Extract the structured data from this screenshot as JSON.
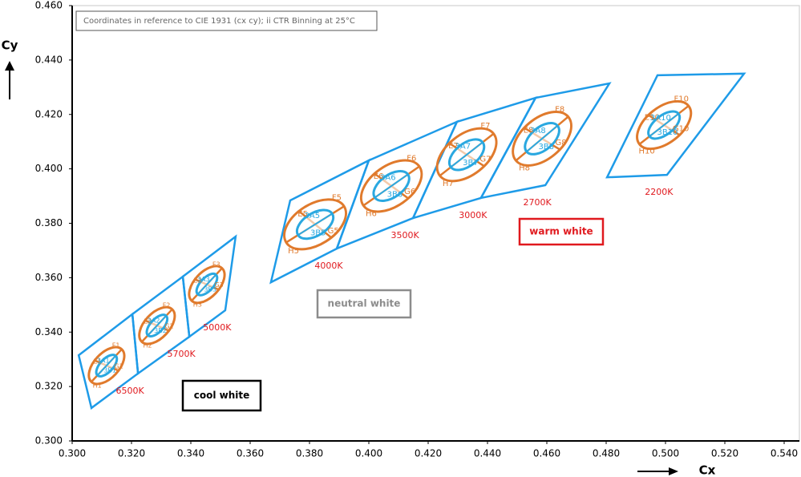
{
  "chart_data": {
    "type": "bin-map",
    "note": "Coordinates in reference to CIE 1931 (cx cy); ii CTR Binning at 25°C",
    "x_label": "Cx",
    "y_label": "Cy",
    "xlim": [
      0.3,
      0.54
    ],
    "ylim": [
      0.3,
      0.46
    ],
    "xticks": [
      {
        "value": 0.3,
        "label": "0.300"
      },
      {
        "value": 0.32,
        "label": "0.320"
      },
      {
        "value": 0.34,
        "label": "0.340"
      },
      {
        "value": 0.36,
        "label": "0.360"
      },
      {
        "value": 0.38,
        "label": "0.380"
      },
      {
        "value": 0.4,
        "label": "0.400"
      },
      {
        "value": 0.42,
        "label": "0.420"
      },
      {
        "value": 0.44,
        "label": "0.440"
      },
      {
        "value": 0.46,
        "label": "0.460"
      },
      {
        "value": 0.48,
        "label": "0.480"
      },
      {
        "value": 0.5,
        "label": "0.500"
      },
      {
        "value": 0.52,
        "label": "0.520"
      },
      {
        "value": 0.54,
        "label": "0.540"
      }
    ],
    "yticks": [
      {
        "value": 0.3,
        "label": "0.300"
      },
      {
        "value": 0.32,
        "label": "0.320"
      },
      {
        "value": 0.34,
        "label": "0.340"
      },
      {
        "value": 0.36,
        "label": "0.360"
      },
      {
        "value": 0.38,
        "label": "0.380"
      },
      {
        "value": 0.4,
        "label": "0.400"
      },
      {
        "value": 0.42,
        "label": "0.420"
      },
      {
        "value": 0.44,
        "label": "0.440"
      },
      {
        "value": 0.46,
        "label": "0.460"
      }
    ],
    "quad_color": "#1e9be8",
    "outer_color": "#e07a2c",
    "inner_color": "#2aa8e0",
    "cct_color": "#e0191e",
    "bins": [
      {
        "name": "6500K",
        "quad": {
          "x": [
            0.3022,
            0.3203,
            0.3222,
            0.3065
          ],
          "y": [
            0.3315,
            0.3466,
            0.3248,
            0.3121
          ]
        },
        "cx": 0.3116,
        "cy": 0.3277,
        "outer": [
          0.0075,
          0.0042
        ],
        "inner": [
          0.0045,
          0.0022
        ],
        "angle": -47,
        "labels": [
          "E1",
          "F1",
          "G1",
          "H1"
        ],
        "inner_labels": [
          "3A1",
          "3B1"
        ]
      },
      {
        "name": "5700K",
        "quad": {
          "x": [
            0.3203,
            0.3373,
            0.3395,
            0.3222
          ],
          "y": [
            0.3466,
            0.3604,
            0.3383,
            0.3248
          ]
        },
        "cx": 0.3286,
        "cy": 0.3424,
        "outer": [
          0.0075,
          0.0042
        ],
        "inner": [
          0.0045,
          0.0022
        ],
        "angle": -47,
        "labels": [
          "E2",
          "F2",
          "G2",
          "H2"
        ],
        "inner_labels": [
          "3A2",
          "3B2"
        ]
      },
      {
        "name": "5000K",
        "quad": {
          "x": [
            0.3373,
            0.3551,
            0.3516,
            0.3395
          ],
          "y": [
            0.3604,
            0.3751,
            0.348,
            0.3383
          ]
        },
        "cx": 0.3454,
        "cy": 0.3575,
        "outer": [
          0.0075,
          0.0042
        ],
        "inner": [
          0.0045,
          0.0022
        ],
        "angle": -47,
        "labels": [
          "E3",
          "F3",
          "G3",
          "H3"
        ],
        "inner_labels": [
          "3A3",
          "3B3"
        ]
      },
      {
        "name": "4000K",
        "quad": {
          "x": [
            0.3735,
            0.4,
            0.3892,
            0.367
          ],
          "y": [
            0.3884,
            0.4031,
            0.3707,
            0.3583
          ]
        },
        "cx": 0.3819,
        "cy": 0.3796,
        "outer": [
          0.0115,
          0.0068
        ],
        "inner": [
          0.0068,
          0.0038
        ],
        "angle": -32,
        "labels": [
          "E5",
          "F5",
          "G5",
          "H5"
        ],
        "inner_labels": [
          "3A5",
          "3B5"
        ]
      },
      {
        "name": "3500K",
        "quad": {
          "x": [
            0.4,
            0.4297,
            0.4149,
            0.3892
          ],
          "y": [
            0.4031,
            0.4173,
            0.3819,
            0.3707
          ]
        },
        "cx": 0.4076,
        "cy": 0.3937,
        "outer": [
          0.0115,
          0.0068
        ],
        "inner": [
          0.0068,
          0.0038
        ],
        "angle": -35,
        "labels": [
          "E6",
          "F6",
          "G6",
          "H6"
        ],
        "inner_labels": [
          "3A6",
          "3B6"
        ]
      },
      {
        "name": "3000K",
        "quad": {
          "x": [
            0.4297,
            0.4562,
            0.4378,
            0.4149
          ],
          "y": [
            0.4173,
            0.4261,
            0.3893,
            0.3819
          ]
        },
        "cx": 0.433,
        "cy": 0.4052,
        "outer": [
          0.0115,
          0.0068
        ],
        "inner": [
          0.0068,
          0.0038
        ],
        "angle": -38,
        "labels": [
          "E7",
          "F7",
          "G7",
          "H7"
        ],
        "inner_labels": [
          "3A7",
          "3B7"
        ]
      },
      {
        "name": "2700K",
        "quad": {
          "x": [
            0.4562,
            0.4811,
            0.4595,
            0.4378
          ],
          "y": [
            0.4261,
            0.4314,
            0.394,
            0.3893
          ]
        },
        "cx": 0.4584,
        "cy": 0.4111,
        "outer": [
          0.0115,
          0.0068
        ],
        "inner": [
          0.0068,
          0.0038
        ],
        "angle": -40,
        "labels": [
          "E8",
          "F8",
          "G8",
          "H8"
        ],
        "inner_labels": [
          "3A8",
          "3B8"
        ]
      },
      {
        "name": "2200K",
        "quad": {
          "x": [
            0.4973,
            0.5265,
            0.5005,
            0.4803
          ],
          "y": [
            0.4344,
            0.435,
            0.3978,
            0.3969
          ]
        },
        "cx": 0.4995,
        "cy": 0.4161,
        "outer": [
          0.0105,
          0.006
        ],
        "inner": [
          0.0062,
          0.0032
        ],
        "angle": -38,
        "labels": [
          "E10",
          "F10",
          "G10",
          "H10"
        ],
        "inner_labels": [
          "3A10",
          "3B10"
        ]
      }
    ],
    "groups": [
      {
        "name": "cool white",
        "color": "#000000"
      },
      {
        "name": "neutral white",
        "color": "#8c8c8c"
      },
      {
        "name": "warm white",
        "color": "#e0191e"
      }
    ]
  }
}
